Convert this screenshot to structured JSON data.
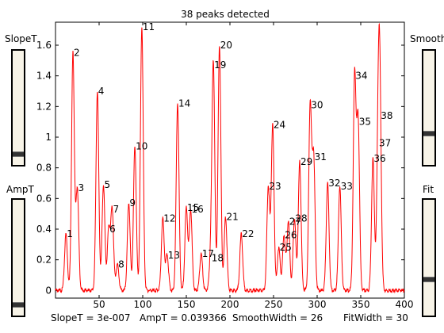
{
  "window": {
    "title": "38 peaks detected"
  },
  "controls": {
    "slope": {
      "label": "SlopeT",
      "level": 0.07
    },
    "amp": {
      "label": "AmpT",
      "level": 0.07
    },
    "smooth": {
      "label": "Smooth",
      "level": 0.26
    },
    "fit": {
      "label": "Fit",
      "level": 0.3
    }
  },
  "status": {
    "slope": "SlopeT = 3e-007",
    "amp": "AmpT = 0.039366",
    "smooth": "SmoothWidth = 26",
    "fit": "FitWidth = 30"
  },
  "colors": {
    "signal": "#ff0000",
    "axis": "#000000",
    "slider_bg": "#f8f4e8",
    "thumb": "#333333"
  },
  "chart_data": {
    "type": "line",
    "title": "38 peaks detected",
    "xlim": [
      0,
      400
    ],
    "ylim": [
      -0.05,
      1.75
    ],
    "xticks": [
      50,
      100,
      150,
      200,
      250,
      300,
      350,
      400
    ],
    "yticks": [
      0,
      0.2,
      0.4,
      0.6,
      0.8,
      1,
      1.2,
      1.4,
      1.6
    ],
    "xtick_labels": [
      "50",
      "100",
      "150",
      "200",
      "250",
      "300",
      "350",
      "400"
    ],
    "ytick_labels": [
      "0",
      "0.2",
      "0.4",
      "0.6",
      "0.8",
      "1",
      "1.2",
      "1.4",
      "1.6"
    ],
    "peaks": [
      {
        "label": "1",
        "x": 12,
        "y": 0.37
      },
      {
        "label": "2",
        "x": 20,
        "y": 1.55
      },
      {
        "label": "3",
        "x": 25,
        "y": 0.67
      },
      {
        "label": "4",
        "x": 48,
        "y": 1.3
      },
      {
        "label": "5",
        "x": 55,
        "y": 0.69
      },
      {
        "label": "6",
        "x": 61,
        "y": 0.4
      },
      {
        "label": "7",
        "x": 65,
        "y": 0.53
      },
      {
        "label": "8",
        "x": 71,
        "y": 0.17
      },
      {
        "label": "9",
        "x": 84,
        "y": 0.57
      },
      {
        "label": "10",
        "x": 91,
        "y": 0.94
      },
      {
        "label": "11",
        "x": 99,
        "y": 1.72
      },
      {
        "label": "12",
        "x": 123,
        "y": 0.47
      },
      {
        "label": "13",
        "x": 128,
        "y": 0.23
      },
      {
        "label": "14",
        "x": 140,
        "y": 1.22
      },
      {
        "label": "15",
        "x": 150,
        "y": 0.54
      },
      {
        "label": "16",
        "x": 155,
        "y": 0.53
      },
      {
        "label": "17",
        "x": 167,
        "y": 0.24
      },
      {
        "label": "18",
        "x": 178,
        "y": 0.21
      },
      {
        "label": "19",
        "x": 181,
        "y": 1.47
      },
      {
        "label": "20",
        "x": 188,
        "y": 1.6
      },
      {
        "label": "21",
        "x": 195,
        "y": 0.48
      },
      {
        "label": "22",
        "x": 213,
        "y": 0.37
      },
      {
        "label": "23",
        "x": 244,
        "y": 0.68
      },
      {
        "label": "24",
        "x": 249,
        "y": 1.08
      },
      {
        "label": "25",
        "x": 256,
        "y": 0.28
      },
      {
        "label": "26",
        "x": 262,
        "y": 0.36
      },
      {
        "label": "27",
        "x": 267,
        "y": 0.45
      },
      {
        "label": "28",
        "x": 274,
        "y": 0.47
      },
      {
        "label": "29",
        "x": 280,
        "y": 0.84
      },
      {
        "label": "30",
        "x": 292,
        "y": 1.21
      },
      {
        "label": "31",
        "x": 296,
        "y": 0.87
      },
      {
        "label": "32",
        "x": 312,
        "y": 0.7
      },
      {
        "label": "33",
        "x": 326,
        "y": 0.68
      },
      {
        "label": "34",
        "x": 343,
        "y": 1.4
      },
      {
        "label": "35",
        "x": 347,
        "y": 1.1
      },
      {
        "label": "36",
        "x": 364,
        "y": 0.86
      },
      {
        "label": "37",
        "x": 370,
        "y": 0.96
      },
      {
        "label": "38",
        "x": 372,
        "y": 1.14
      }
    ]
  }
}
